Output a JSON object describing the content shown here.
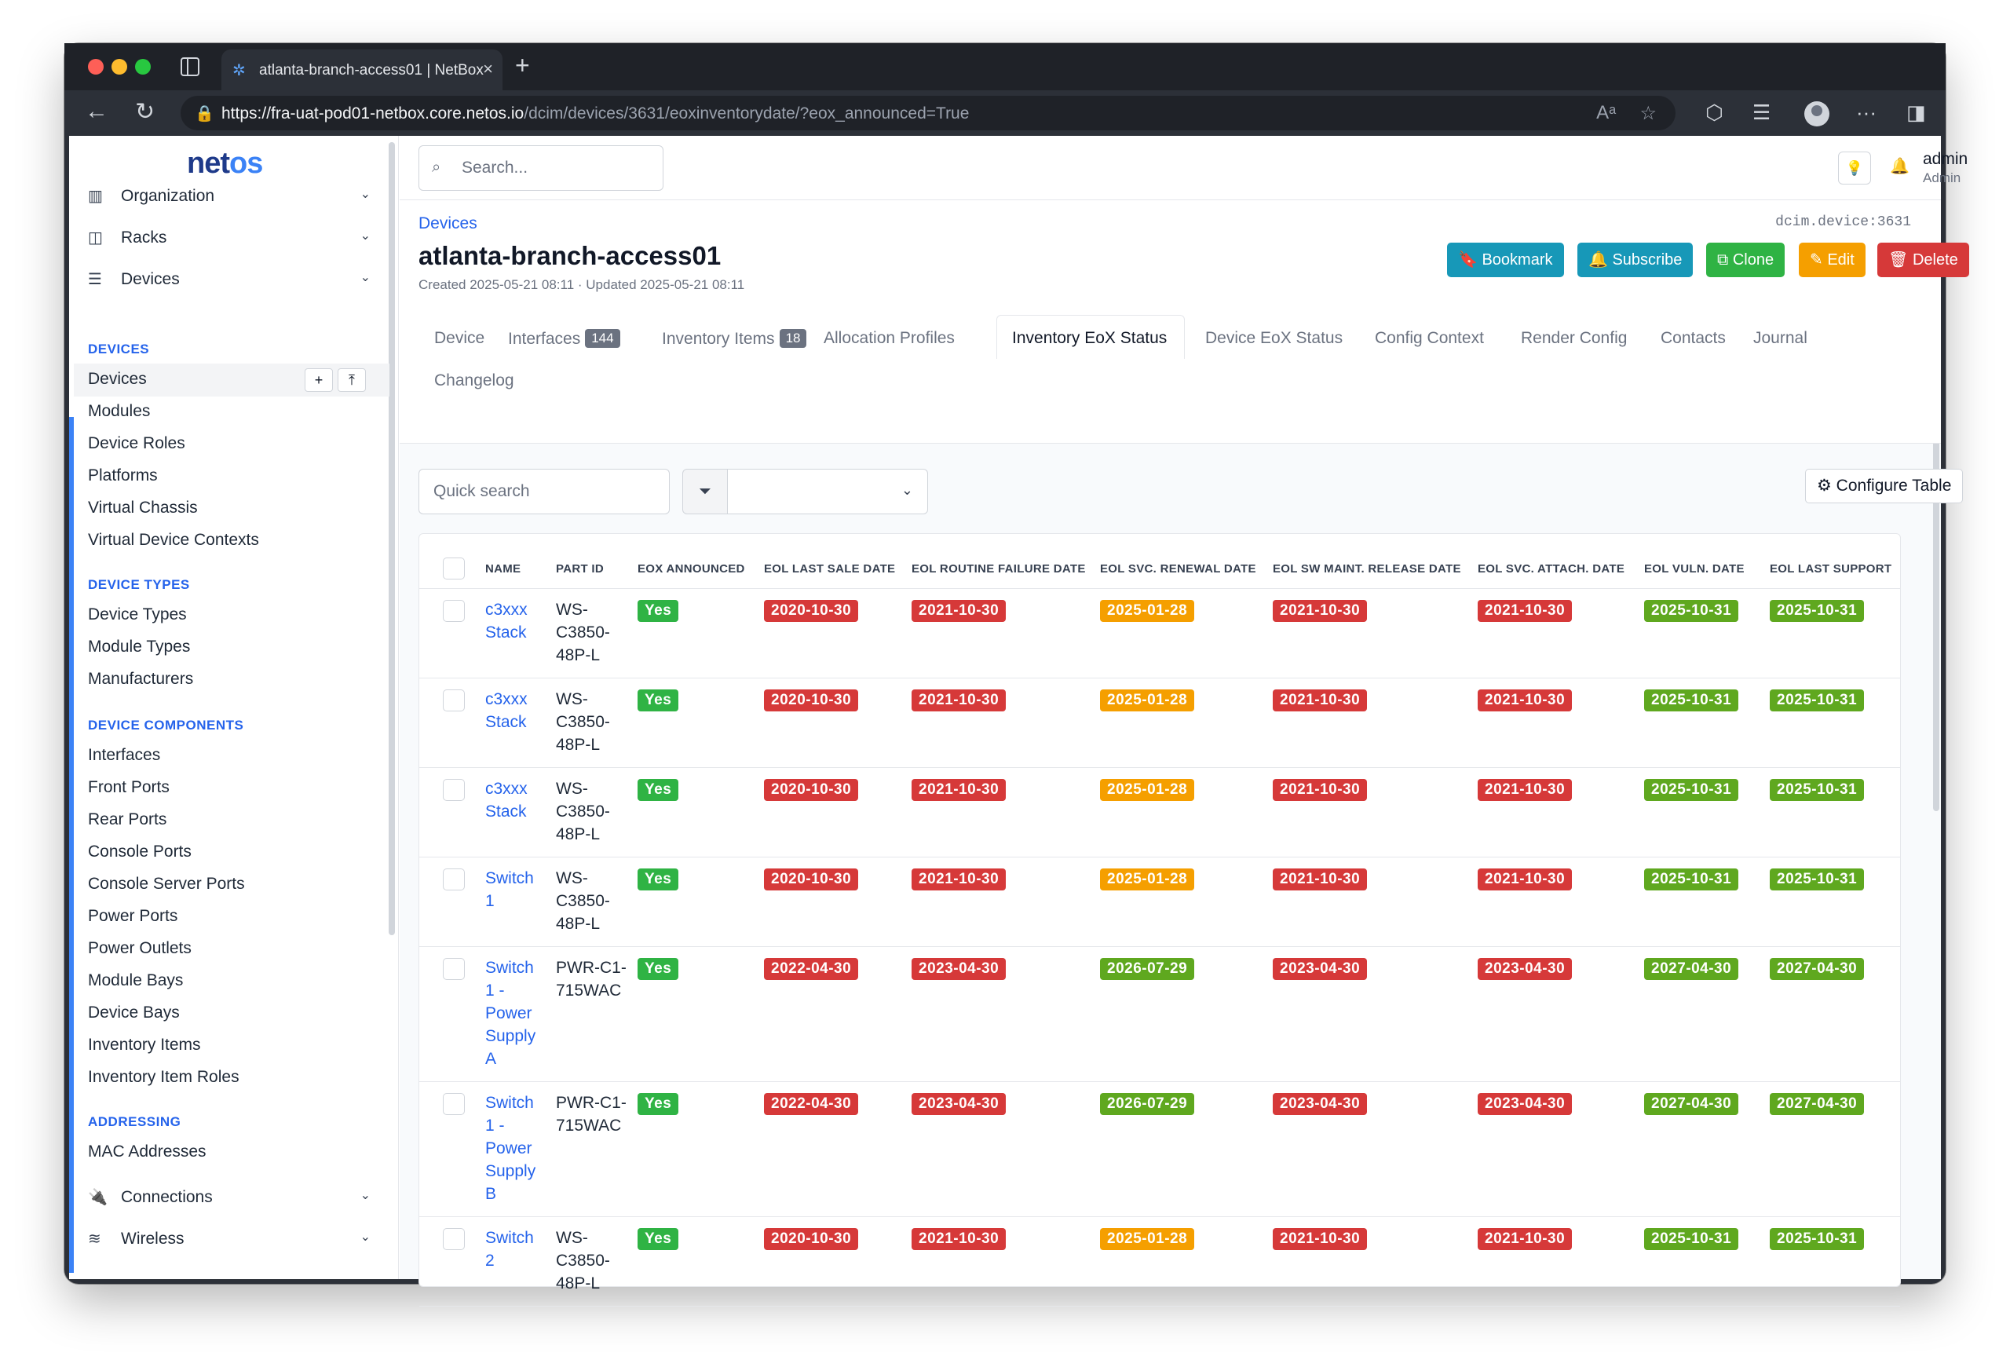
{
  "browser": {
    "tab_title": "atlanta-branch-access01 | NetBox",
    "url_host": "https://fra-uat-pod01-netbox.core.netos.io",
    "url_path": "/dcim/devices/3631/eoxinventorydate/?eox_announced=True"
  },
  "sidebar": {
    "logo_a": "net",
    "logo_b": "os",
    "groups": [
      {
        "label": "Organization",
        "icon": "building-icon"
      },
      {
        "label": "Racks",
        "icon": "rack-icon"
      },
      {
        "label": "Devices",
        "icon": "server-icon"
      }
    ],
    "sections": {
      "devices": "DEVICES",
      "device_types": "DEVICE TYPES",
      "device_components": "DEVICE COMPONENTS",
      "addressing": "ADDRESSING"
    },
    "devices_items": [
      "Devices",
      "Modules",
      "Device Roles",
      "Platforms",
      "Virtual Chassis",
      "Virtual Device Contexts"
    ],
    "device_type_items": [
      "Device Types",
      "Module Types",
      "Manufacturers"
    ],
    "component_items": [
      "Interfaces",
      "Front Ports",
      "Rear Ports",
      "Console Ports",
      "Console Server Ports",
      "Power Ports",
      "Power Outlets",
      "Module Bays",
      "Device Bays",
      "Inventory Items",
      "Inventory Item Roles"
    ],
    "addressing_items": [
      "MAC Addresses"
    ],
    "bottom_groups": [
      {
        "label": "Connections",
        "icon": "plug-icon"
      },
      {
        "label": "Wireless",
        "icon": "wifi-icon"
      }
    ]
  },
  "topbar": {
    "search_placeholder": "Search...",
    "user_name": "admin",
    "user_role": "Admin"
  },
  "header": {
    "breadcrumb": "Devices",
    "device_id": "dcim.device:3631",
    "title": "atlanta-branch-access01",
    "subtitle": "Created 2025-05-21 08:11 · Updated 2025-05-21 08:11",
    "buttons": {
      "bookmark": "Bookmark",
      "subscribe": "Subscribe",
      "clone": "Clone",
      "edit": "Edit",
      "delete": "Delete"
    },
    "tabs": {
      "device": "Device",
      "interfaces": "Interfaces",
      "interfaces_count": "144",
      "inventory": "Inventory Items",
      "inventory_count": "18",
      "allocation": "Allocation Profiles",
      "inv_eox": "Inventory EoX Status",
      "dev_eox": "Device EoX Status",
      "config_context": "Config Context",
      "render_config": "Render Config",
      "contacts": "Contacts",
      "journal": "Journal",
      "changelog": "Changelog"
    }
  },
  "toolbar": {
    "quick_search_placeholder": "Quick search",
    "configure_table": "Configure Table"
  },
  "table": {
    "columns": [
      "NAME",
      "PART ID",
      "EOX ANNOUNCED",
      "EOL LAST SALE DATE",
      "EOL ROUTINE FAILURE DATE",
      "EOL SVC. RENEWAL DATE",
      "EOL SW MAINT. RELEASE DATE",
      "EOL SVC. ATTACH. DATE",
      "EOL VULN. DATE",
      "EOL LAST SUPPORT"
    ],
    "rows": [
      {
        "name": "c3xxx Stack",
        "part": "WS-C3850-48P-L",
        "eox": "Yes",
        "last_sale": "2020-10-30",
        "routine_failure": "2021-10-30",
        "svc_renewal": "2025-01-28",
        "sw_maint": "2021-10-30",
        "svc_attach": "2021-10-30",
        "vuln": "2025-10-31",
        "last_support": "2025-10-31"
      },
      {
        "name": "c3xxx Stack",
        "part": "WS-C3850-48P-L",
        "eox": "Yes",
        "last_sale": "2020-10-30",
        "routine_failure": "2021-10-30",
        "svc_renewal": "2025-01-28",
        "sw_maint": "2021-10-30",
        "svc_attach": "2021-10-30",
        "vuln": "2025-10-31",
        "last_support": "2025-10-31"
      },
      {
        "name": "c3xxx Stack",
        "part": "WS-C3850-48P-L",
        "eox": "Yes",
        "last_sale": "2020-10-30",
        "routine_failure": "2021-10-30",
        "svc_renewal": "2025-01-28",
        "sw_maint": "2021-10-30",
        "svc_attach": "2021-10-30",
        "vuln": "2025-10-31",
        "last_support": "2025-10-31"
      },
      {
        "name": "Switch 1",
        "part": "WS-C3850-48P-L",
        "eox": "Yes",
        "last_sale": "2020-10-30",
        "routine_failure": "2021-10-30",
        "svc_renewal": "2025-01-28",
        "sw_maint": "2021-10-30",
        "svc_attach": "2021-10-30",
        "vuln": "2025-10-31",
        "last_support": "2025-10-31"
      },
      {
        "name": "Switch 1 - Power Supply A",
        "part": "PWR-C1-715WAC",
        "eox": "Yes",
        "last_sale": "2022-04-30",
        "routine_failure": "2023-04-30",
        "svc_renewal": "2026-07-29",
        "sw_maint": "2023-04-30",
        "svc_attach": "2023-04-30",
        "vuln": "2027-04-30",
        "last_support": "2027-04-30"
      },
      {
        "name": "Switch 1 - Power Supply B",
        "part": "PWR-C1-715WAC",
        "eox": "Yes",
        "last_sale": "2022-04-30",
        "routine_failure": "2023-04-30",
        "svc_renewal": "2026-07-29",
        "sw_maint": "2023-04-30",
        "svc_attach": "2023-04-30",
        "vuln": "2027-04-30",
        "last_support": "2027-04-30"
      },
      {
        "name": "Switch 2",
        "part": "WS-C3850-48P-L",
        "eox": "Yes",
        "last_sale": "2020-10-30",
        "routine_failure": "2021-10-30",
        "svc_renewal": "2025-01-28",
        "sw_maint": "2021-10-30",
        "svc_attach": "2021-10-30",
        "vuln": "2025-10-31",
        "last_support": "2025-10-31"
      }
    ]
  },
  "colors": {
    "accent": "#2563eb",
    "past": "#d63939",
    "warning": "#f59f00",
    "future": "#5fa81f",
    "yes": "#2fb344"
  }
}
